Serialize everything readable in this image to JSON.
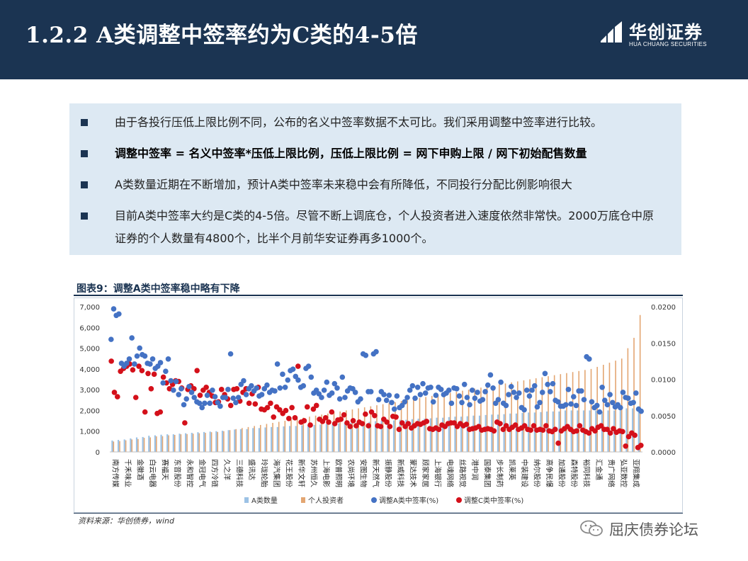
{
  "header": {
    "title": "1.2.2  A类调整中签率约为C类的4-5倍",
    "logo_cn": "华创证券",
    "logo_en": "HUA CHUANG SECURITIES"
  },
  "bullets": [
    {
      "text": "由于各投行压低上限比例不同，公布的名义中签率数据不太可比。我们采用调整中签率进行比较。",
      "bold": false
    },
    {
      "text": "调整中签率 = 名义中签率*压低上限比例，压低上限比例 = 网下申购上限 / 网下初始配售数量",
      "bold": true
    },
    {
      "text": "A类数量近期在不断增加，预计A类中签率未来稳中会有所降低，不同投行分配比例影响很大",
      "bold": false
    },
    {
      "text": "目前A类中签率大约是C类的4-5倍。尽管不断上调底仓，个人投资者进入速度依然非常快。2000万底仓中原证券的个人数量有4800个，比半个月前华安证券再多1000个。",
      "bold": false
    }
  ],
  "figure": {
    "caption": "图表9：调整A类中签率稳中略有下降",
    "source": "资料来源：华创债券，wind"
  },
  "watermark": "屈庆债券论坛",
  "colors": {
    "header_bg": "#1b3452",
    "panel_bg": "#dde9f3",
    "bar_a": "#9cc2e5",
    "bar_personal": "#e3a672",
    "dot_a": "#4472c4",
    "dot_c": "#d4101a"
  },
  "chart_data": {
    "type": "bar",
    "left_ticks": [
      "0",
      "1,000",
      "2,000",
      "3,000",
      "4,000",
      "5,000",
      "6,000",
      "7,000"
    ],
    "right_ticks": [
      "0.0000",
      "0.0050",
      "0.0100",
      "0.0150",
      "0.0200"
    ],
    "ylim_left": [
      0,
      7000
    ],
    "ylim_right": [
      0,
      0.02
    ],
    "legend_position": "bottom",
    "category_labels": [
      "南方传媒",
      "千禾味业",
      "金徽酒",
      "白云电器",
      "赛福天",
      "东音股份",
      "永和智控",
      "金冠电气",
      "四方冷链",
      "久之洋",
      "三德科技",
      "盛讯达",
      "玲珑轮胎",
      "海汽集团",
      "花王股份",
      "新华文轩",
      "苏州恒久",
      "上海电影",
      "欧普照明",
      "农尚环境",
      "安图生物",
      "新天然气",
      "振静股份",
      "新威科技",
      "蒙达技术",
      "顾家家居",
      "上海银行",
      "电魂网络",
      "丝路视觉",
      "港中润",
      "国泰集团",
      "步长制药",
      "凯莱英",
      "中装建设",
      "纳尔股份",
      "高争民爆",
      "加通股份",
      "森特股份",
      "裕同科技",
      "汇金通",
      "贵广网络",
      "弘亚数控",
      "亚翔集成"
    ],
    "series": [
      {
        "name": "A类数量",
        "type": "bar",
        "axis": "left",
        "values": [
          550,
          580,
          600,
          650,
          700,
          720,
          780,
          800,
          830,
          850,
          850,
          880,
          900,
          920,
          950,
          960,
          980,
          1000,
          1020,
          1050,
          1080,
          1100,
          1100,
          1150,
          1150,
          1180,
          1200,
          1200,
          1230,
          1250,
          1250,
          1280,
          1300,
          1300,
          1320,
          1350,
          1350,
          1380,
          1400,
          1400,
          1420,
          1450,
          1450,
          1480,
          1500,
          1500,
          1520,
          1550,
          1550,
          1580,
          1600,
          1600,
          1620,
          1650,
          1650,
          1680,
          1700,
          1700,
          1720,
          1750,
          1750,
          1780,
          1800,
          1800,
          1820,
          1850,
          1850,
          1880,
          1900,
          1900,
          1920,
          1950,
          1950,
          1950,
          2000,
          2000,
          2000,
          2000,
          2000,
          2000,
          1950,
          2000,
          2000,
          2050,
          2100,
          2100,
          2200
        ]
      },
      {
        "name": "个人投资者",
        "type": "bar",
        "axis": "left",
        "values": [
          500,
          520,
          560,
          600,
          620,
          680,
          700,
          750,
          760,
          800,
          820,
          850,
          860,
          880,
          900,
          920,
          950,
          960,
          1000,
          1050,
          1100,
          1150,
          1200,
          1250,
          1300,
          1350,
          1400,
          1450,
          1500,
          1550,
          1600,
          1650,
          1700,
          1750,
          1800,
          1850,
          1900,
          1950,
          2000,
          2050,
          2100,
          2150,
          2200,
          2250,
          2300,
          2350,
          2400,
          2450,
          2500,
          2550,
          2600,
          2650,
          2700,
          2750,
          2800,
          2850,
          2900,
          2950,
          3000,
          3050,
          3100,
          3150,
          3200,
          3250,
          3300,
          3350,
          3400,
          3450,
          3500,
          3550,
          3600,
          3650,
          3700,
          3750,
          3800,
          3850,
          3900,
          3950,
          4000,
          4100,
          4200,
          4300,
          4400,
          4500,
          5000,
          5500,
          6600
        ]
      },
      {
        "name": "调整A类中签率(%)",
        "type": "scatter",
        "axis": "right",
        "values": [
          0.0155,
          0.0197,
          0.0188,
          0.019,
          0.0122,
          0.0118,
          0.0122,
          0.0128,
          0.0157,
          0.0121,
          0.0132,
          0.0143,
          0.0134,
          0.0132,
          0.0122,
          0.0121,
          0.0128,
          0.0115,
          0.0118,
          0.0123,
          0.0095,
          0.0111,
          0.0128,
          0.0098,
          0.0085,
          0.0097,
          0.0079,
          0.0087,
          0.0065,
          0.0073,
          0.009,
          0.0082,
          0.0075,
          0.0069,
          0.0067,
          0.0061,
          0.0067,
          0.0078,
          0.0067,
          0.0085,
          0.0076,
          0.0068,
          0.0063,
          0.0075,
          0.0075,
          0.0086,
          0.0135,
          0.0074,
          0.0068,
          0.0075,
          0.0093,
          0.0098,
          0.0079,
          0.0087,
          0.0091,
          0.0084,
          0.0088,
          0.0077,
          0.0079,
          0.0087,
          0.0092,
          0.0082,
          0.0085,
          0.0084,
          0.0121,
          0.0088,
          0.0107,
          0.0089,
          0.0099,
          0.0112,
          0.0114,
          0.0104,
          0.0099,
          0.0089,
          0.0091,
          0.0115,
          0.0118,
          0.0103,
          0.0081,
          0.0085,
          0.008,
          0.0075,
          0.0085,
          0.0096,
          0.0078,
          0.0081,
          0.0094,
          0.0088,
          0.0073,
          0.0103,
          0.0075,
          0.0084,
          0.0088,
          0.0087,
          0.0082,
          0.0069,
          0.0073,
          0.0135,
          0.0133,
          0.0083,
          0.0083,
          0.0135,
          0.0138,
          0.0072,
          0.0083,
          0.0079,
          0.0071,
          0.0078,
          0.0068,
          0.0059,
          0.0077,
          0.0061,
          0.0064,
          0.0069,
          0.0075,
          0.0085,
          0.0091,
          0.0074,
          0.0089,
          0.0079,
          0.0094,
          0.0081,
          0.0088,
          0.0089,
          0.0069,
          0.0078,
          0.0089,
          0.0086,
          0.0079,
          0.0081,
          0.0085,
          0.0067,
          0.0088,
          0.0087,
          0.0077,
          0.0068,
          0.0093,
          0.0075,
          0.0065,
          0.0085,
          0.0074,
          0.0082,
          0.007,
          0.0072,
          0.0083,
          0.0092,
          0.0106,
          0.0088,
          0.0067,
          0.0072,
          0.0096,
          0.0067,
          0.0064,
          0.0079,
          0.009,
          0.0082,
          0.0075,
          0.0081,
          0.0061,
          0.0058,
          0.0085,
          0.0077,
          0.0085,
          0.0091,
          0.0062,
          0.0068,
          0.0082,
          0.0108,
          0.0093,
          0.0083,
          0.0094,
          0.0071,
          0.0069,
          0.0063,
          0.0063,
          0.0065,
          0.0086,
          0.0066,
          0.0076,
          0.0064,
          0.0084,
          0.0084,
          0.0072,
          0.0131,
          0.0128,
          0.0069,
          0.0061,
          0.0064,
          0.0055,
          0.0089,
          0.0071,
          0.0065,
          0.0079,
          0.0068,
          0.0062,
          0.0065,
          0.0061,
          0.0082,
          0.0075,
          0.0074,
          0.0067,
          0.0068,
          0.0081,
          0.0059,
          0.0056
        ]
      },
      {
        "name": "调整C类中签率(%)",
        "type": "scatter",
        "axis": "right",
        "values": [
          0.0125,
          0.0082,
          0.0076,
          0.0111,
          0.0115,
          0.0118,
          0.0121,
          0.0113,
          0.0075,
          0.0118,
          0.0112,
          0.0055,
          0.0108,
          0.0087,
          0.0107,
          0.0053,
          0.0055,
          0.0103,
          0.0095,
          0.0087,
          0.0093,
          0.0098,
          0.0097,
          0.0088,
          0.004,
          0.0086,
          0.0091,
          0.0087,
          0.0112,
          0.0078,
          0.0085,
          0.0089,
          0.0082,
          0.0077,
          0.0068,
          0.0069,
          0.0086,
          0.0079,
          0.0073,
          0.0064,
          0.0086,
          0.0087,
          0.007,
          0.0082,
          0.0087,
          0.0067,
          0.008,
          0.0066,
          0.0089,
          0.0059,
          0.0058,
          0.0061,
          0.0067,
          0.0048,
          0.0062,
          0.0058,
          0.0053,
          0.0057,
          0.0046,
          0.0061,
          0.0047,
          0.0118,
          0.0041,
          0.0043,
          0.0062,
          0.0037,
          0.0059,
          0.0064,
          0.0045,
          0.0042,
          0.0047,
          0.0041,
          0.0055,
          0.0039,
          0.0044,
          0.0045,
          0.0051,
          0.004,
          0.0035,
          0.0043,
          0.0036,
          0.0041,
          0.0039,
          0.0052,
          0.0036,
          0.0055,
          0.005,
          0.0036,
          0.0035,
          0.0045,
          0.0041,
          0.0035,
          0.0049,
          0.0048,
          0.0031,
          0.004,
          0.0035,
          0.0039,
          0.0033,
          0.0036,
          0.0039,
          0.0038,
          0.004,
          0.0042,
          0.0032,
          0.0031,
          0.0033,
          0.0031,
          0.0037,
          0.0035,
          0.0039,
          0.004,
          0.004,
          0.0035,
          0.0039,
          0.0036,
          0.0038,
          0.0031,
          0.0032,
          0.0033,
          0.0035,
          0.003,
          0.0031,
          0.0032,
          0.0031,
          0.0029,
          0.0041,
          0.0039,
          0.0031,
          0.0036,
          0.0031,
          0.0034,
          0.0037,
          0.0031,
          0.0033,
          0.0036,
          0.0031,
          0.003,
          0.0036,
          0.003,
          0.0031,
          0.003,
          0.0036,
          0.0029,
          0.0028,
          0.0031,
          0.0012,
          0.0029,
          0.0032,
          0.0035,
          0.0031,
          0.0028,
          0.0029,
          0.0036,
          0.003,
          0.0028,
          0.0026,
          0.0032,
          0.0029,
          0.0034,
          0.0036,
          0.0031,
          0.0031,
          0.0026,
          0.0032,
          0.0027,
          0.0029,
          0.0028,
          0.0008,
          0.0021,
          0.0026,
          0.0023,
          0.0006,
          0.0009
        ]
      }
    ]
  }
}
